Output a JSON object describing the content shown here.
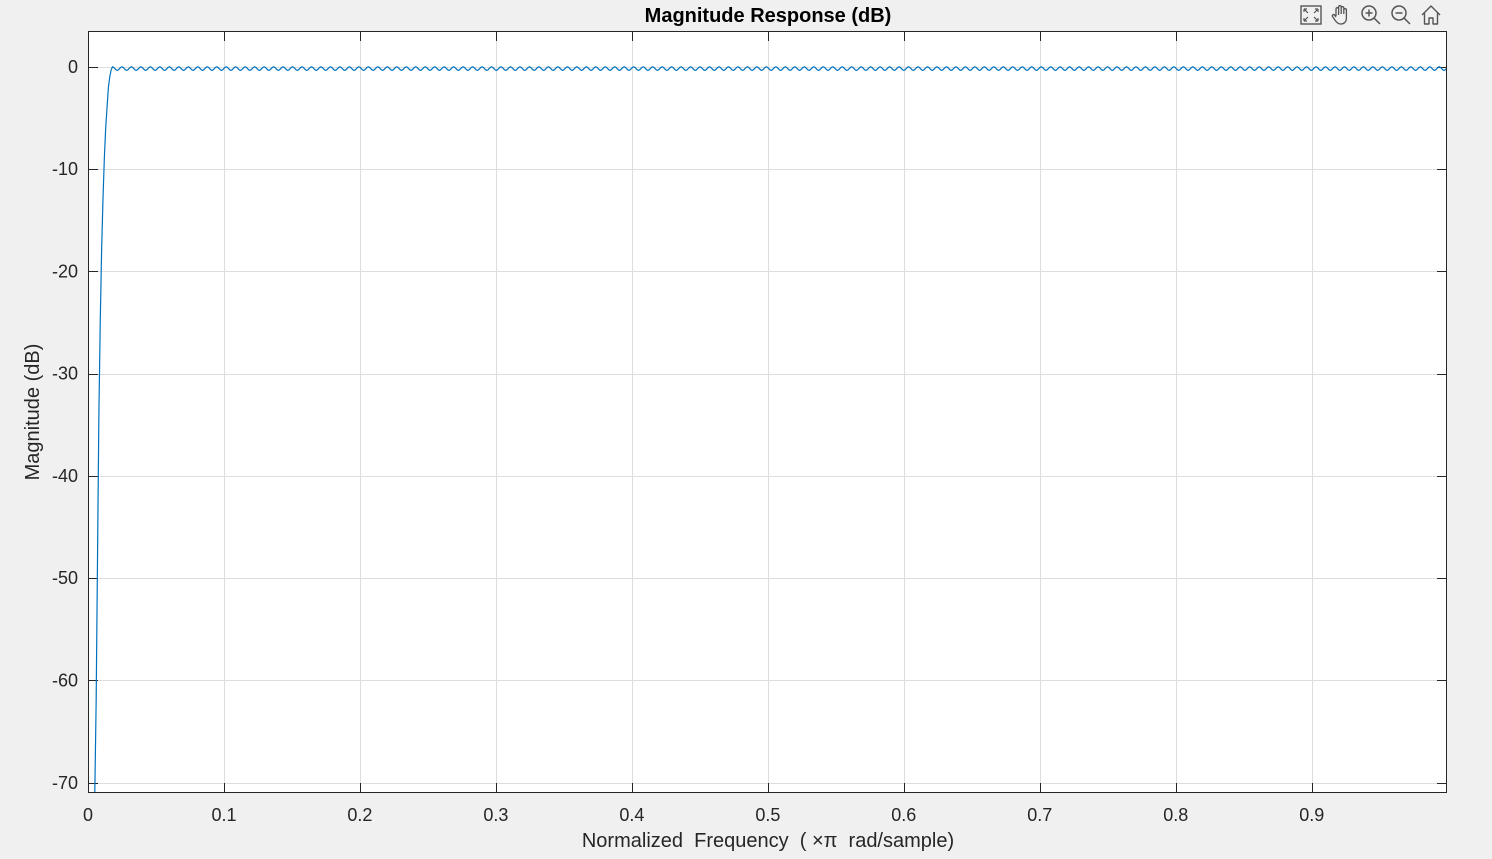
{
  "chart_data": {
    "type": "line",
    "title": "Magnitude Response (dB)",
    "xlabel": "Normalized  Frequency  ( ×π  rad/sample)",
    "ylabel": "Magnitude (dB)",
    "xlim": [
      0,
      0.9995
    ],
    "ylim": [
      -71,
      3.5
    ],
    "xticks": [
      0,
      0.1,
      0.2,
      0.3,
      0.4,
      0.5,
      0.6,
      0.7,
      0.8,
      0.9
    ],
    "xticklabels": [
      "0",
      "0.1",
      "0.2",
      "0.3",
      "0.4",
      "0.5",
      "0.6",
      "0.7",
      "0.8",
      "0.9"
    ],
    "yticks": [
      0,
      -10,
      -20,
      -30,
      -40,
      -50,
      -60,
      -70
    ],
    "yticklabels": [
      "0",
      "-10",
      "-20",
      "-30",
      "-40",
      "-50",
      "-60",
      "-70"
    ],
    "grid": true,
    "line_color": "#0072bd",
    "series": [
      {
        "x": [
          0.005,
          0.006,
          0.0065,
          0.007,
          0.0075,
          0.008,
          0.009,
          0.01,
          0.011,
          0.012,
          0.013,
          0.014,
          0.015,
          0.016,
          0.017,
          0.018
        ],
        "y": [
          -71,
          -62,
          -55,
          -48,
          -41,
          -34,
          -25,
          -18,
          -13,
          -9,
          -6,
          -4,
          -2,
          -1,
          -0.3,
          0
        ],
        "ripple_db": 0.35,
        "ripple_period": 0.00697,
        "ripple_from": 0.018,
        "ripple_to": 0.9995
      }
    ]
  },
  "toolbar": {
    "icons": [
      "restore-view-icon",
      "pan-hand-icon",
      "zoom-in-icon",
      "zoom-out-icon",
      "home-icon"
    ]
  }
}
